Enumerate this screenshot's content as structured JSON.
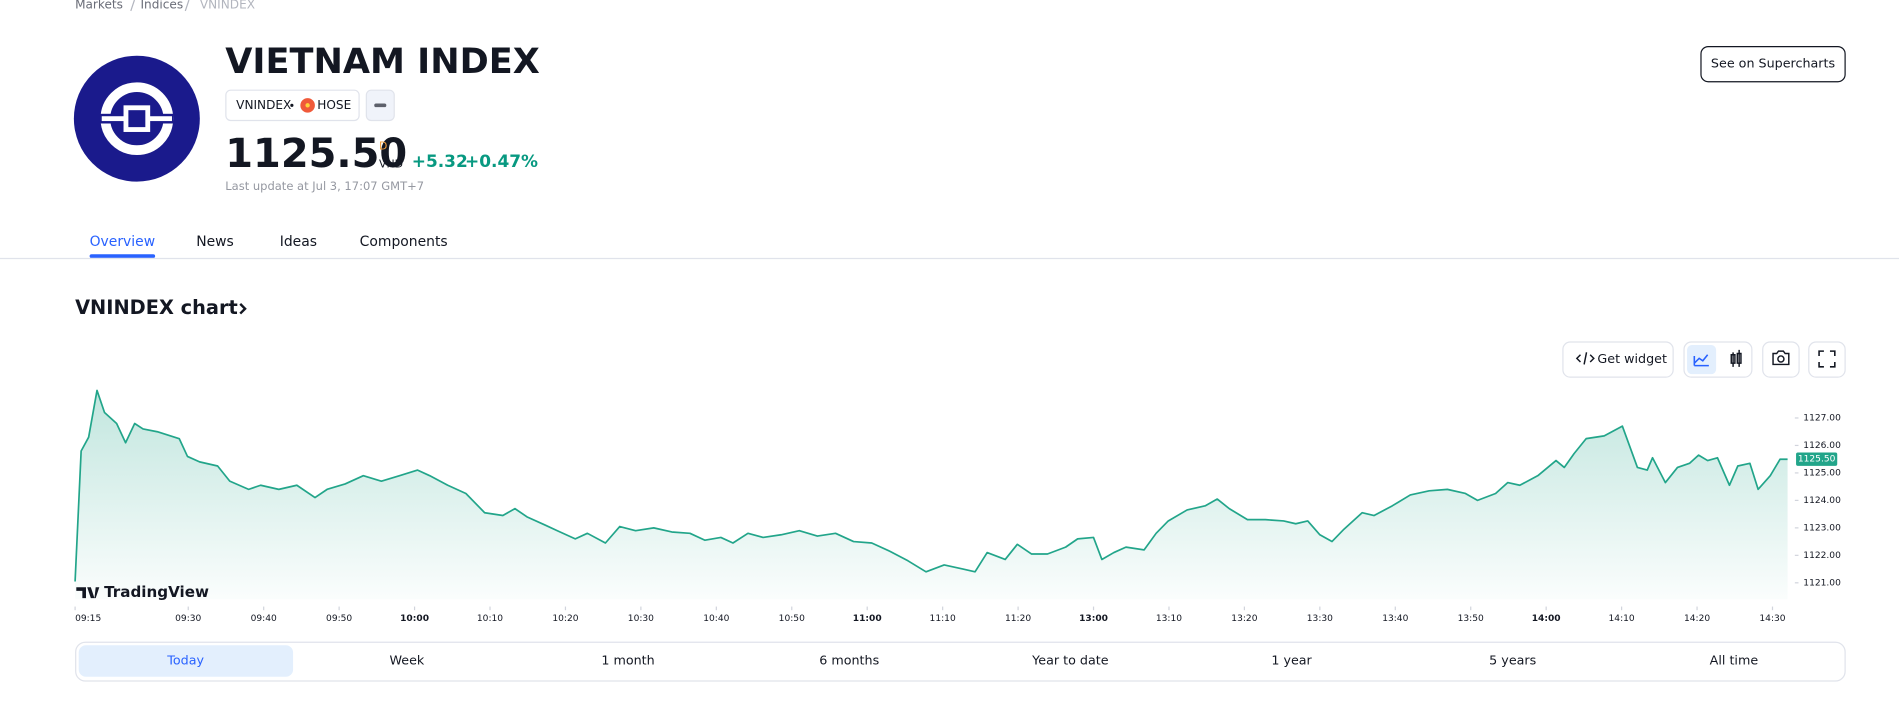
{
  "breadcrumbs": [
    "Markets",
    "Indices",
    "VNINDEX"
  ],
  "header": {
    "title": "VIETNAM INDEX",
    "symbol": "VNINDEX",
    "exchange": "HOSE",
    "price": "1125.50",
    "currency_symbol": "D",
    "currency": "VND",
    "change": "+5.32",
    "change_percent": "+0.47%",
    "last_update": "Last update at Jul 3, 17:07 GMT+7",
    "supercharts_button": "See on Supercharts"
  },
  "tabs": [
    "Overview",
    "News",
    "Ideas",
    "Components"
  ],
  "chart_section": {
    "title": "VNINDEX chart",
    "get_widget": "Get widget",
    "watermark": "TradingView"
  },
  "chart_data": {
    "type": "area",
    "x": [
      0,
      0.8,
      1.8,
      2.9,
      3.9,
      5.5,
      6.7,
      7.9,
      9.0,
      10.9,
      13.8,
      14.9,
      16.5,
      18.9,
      20.5,
      23.0,
      24.6,
      27.0,
      29.4,
      31.8,
      33.4,
      35.8,
      38.2,
      40.6,
      43.0,
      45.4,
      47.0,
      49.4,
      51.8,
      54.3,
      56.7,
      58.3,
      59.9,
      62.3,
      63.9,
      66.3,
      67.9,
      70.3,
      72.2,
      74.3,
      76.7,
      79.1,
      81.5,
      83.5,
      85.6,
      87.2,
      89.2,
      91.2,
      93.6,
      96.0,
      98.4,
      100.8,
      103.2,
      105.6,
      108.0,
      110.4,
      112.8,
      115.2,
      117.7,
      119.3,
      120.9,
      123.3,
      124.9,
      126.8,
      128.9,
      131.3,
      132.9,
      135.0,
      136.1,
      137.7,
      139.3,
      141.7,
      143.3,
      144.9,
      147.4,
      149.8,
      151.4,
      153.0,
      155.4,
      157.8,
      160.2,
      161.8,
      163.4,
      165.0,
      166.6,
      168.2,
      170.6,
      172.2,
      174.6,
      177.0,
      179.5,
      181.9,
      184.3,
      185.9,
      188.3,
      189.9,
      191.5,
      193.9,
      196.3,
      197.4,
      198.7,
      200.3,
      202.7,
      205.1,
      207.1,
      208.4,
      209.1,
      210.8,
      212.4,
      214.0,
      215.2,
      216.4,
      217.7,
      219.3,
      220.4,
      222.0,
      223.1,
      224.7,
      226.0,
      227.0
    ],
    "series": [
      {
        "color": "#22a58a",
        "values": [
          1121.05,
          1125.8,
          1126.3,
          1128.0,
          1127.2,
          1126.8,
          1126.1,
          1126.8,
          1126.6,
          1126.5,
          1126.25,
          1125.6,
          1125.4,
          1125.25,
          1124.7,
          1124.4,
          1124.55,
          1124.4,
          1124.55,
          1124.1,
          1124.4,
          1124.6,
          1124.9,
          1124.7,
          1124.9,
          1125.1,
          1124.9,
          1124.55,
          1124.25,
          1123.55,
          1123.45,
          1123.7,
          1123.4,
          1123.1,
          1122.9,
          1122.6,
          1122.8,
          1122.45,
          1123.05,
          1122.9,
          1123.0,
          1122.85,
          1122.8,
          1122.55,
          1122.65,
          1122.45,
          1122.8,
          1122.65,
          1122.75,
          1122.9,
          1122.7,
          1122.8,
          1122.5,
          1122.45,
          1122.15,
          1121.8,
          1121.4,
          1121.65,
          1121.5,
          1121.4,
          1122.1,
          1121.85,
          1122.4,
          1122.05,
          1122.05,
          1122.3,
          1122.6,
          1122.65,
          1121.85,
          1122.1,
          1122.3,
          1122.2,
          1122.8,
          1123.25,
          1123.65,
          1123.8,
          1124.05,
          1123.7,
          1123.3,
          1123.3,
          1123.25,
          1123.15,
          1123.25,
          1122.75,
          1122.5,
          1122.95,
          1123.55,
          1123.45,
          1123.8,
          1124.2,
          1124.35,
          1124.4,
          1124.25,
          1124.0,
          1124.25,
          1124.65,
          1124.55,
          1124.9,
          1125.45,
          1125.2,
          1125.7,
          1126.25,
          1126.35,
          1126.7,
          1125.2,
          1125.1,
          1125.55,
          1124.65,
          1125.2,
          1125.35,
          1125.65,
          1125.45,
          1125.55,
          1124.55,
          1125.25,
          1125.35,
          1124.4,
          1124.9,
          1125.5,
          1125.5
        ]
      }
    ],
    "xlim": [
      0,
      227
    ],
    "xticks": [
      {
        "value": 0,
        "label": "09:15"
      },
      {
        "value": 15,
        "label": "09:30"
      },
      {
        "value": 25,
        "label": "09:40"
      },
      {
        "value": 35,
        "label": "09:50"
      },
      {
        "value": 45,
        "label": "10:00"
      },
      {
        "value": 55,
        "label": "10:10"
      },
      {
        "value": 65,
        "label": "10:20"
      },
      {
        "value": 75,
        "label": "10:30"
      },
      {
        "value": 85,
        "label": "10:40"
      },
      {
        "value": 95,
        "label": "10:50"
      },
      {
        "value": 105,
        "label": "11:00"
      },
      {
        "value": 115,
        "label": "11:10"
      },
      {
        "value": 125,
        "label": "11:20"
      },
      {
        "value": 135,
        "label": "13:00"
      },
      {
        "value": 145,
        "label": "13:10"
      },
      {
        "value": 155,
        "label": "13:20"
      },
      {
        "value": 165,
        "label": "13:30"
      },
      {
        "value": 175,
        "label": "13:40"
      },
      {
        "value": 185,
        "label": "13:50"
      },
      {
        "value": 195,
        "label": "14:00"
      },
      {
        "value": 205,
        "label": "14:10"
      },
      {
        "value": 215,
        "label": "14:20"
      },
      {
        "value": 225,
        "label": "14:30"
      }
    ],
    "ylim": [
      1120.4,
      1128.2
    ],
    "yticks": [
      {
        "value": 1121,
        "label": "1121.00"
      },
      {
        "value": 1122,
        "label": "1122.00"
      },
      {
        "value": 1123,
        "label": "1123.00"
      },
      {
        "value": 1124,
        "label": "1124.00"
      },
      {
        "value": 1125,
        "label": "1125.00"
      },
      {
        "value": 1126,
        "label": "1126.00"
      },
      {
        "value": 1127,
        "label": "1127.00"
      }
    ],
    "price_tag": {
      "value": 1125.5,
      "label": "1125.50"
    }
  },
  "ranges": [
    "Today",
    "Week",
    "1 month",
    "6 months",
    "Year to date",
    "1 year",
    "5 years",
    "All time"
  ]
}
